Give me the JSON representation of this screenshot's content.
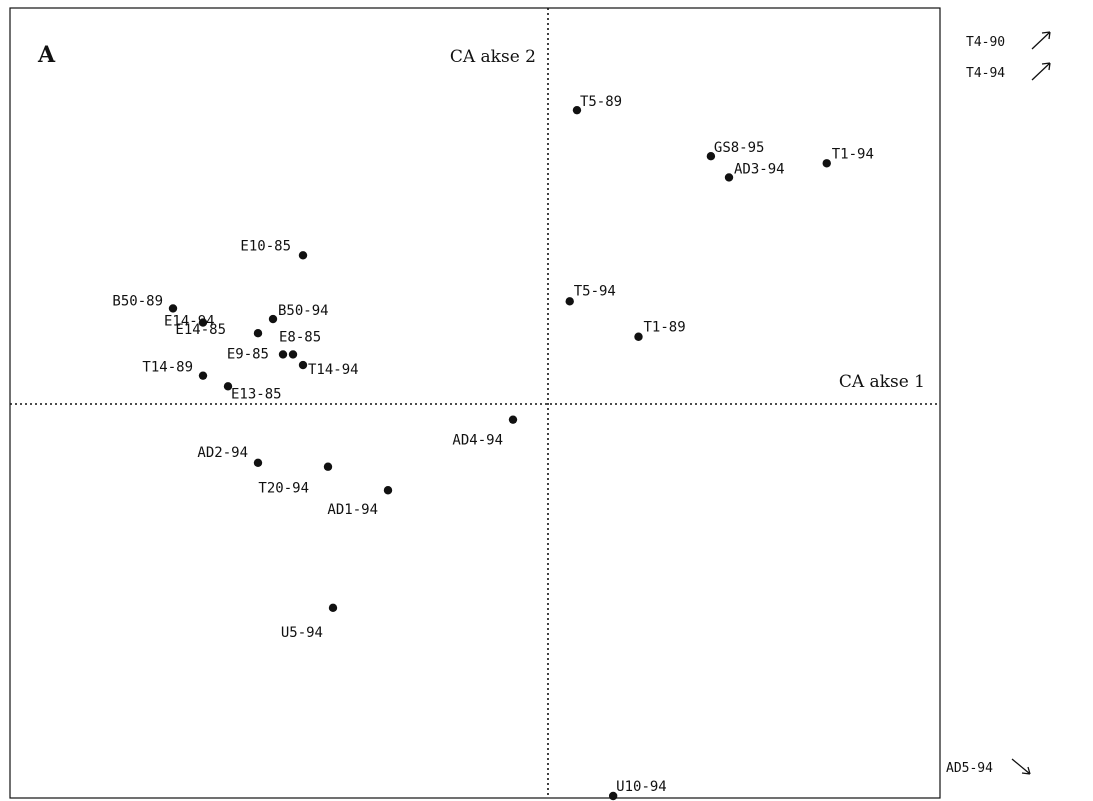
{
  "chart_data": {
    "type": "scatter",
    "panel_label": "A",
    "xlabel": "CA akse 1",
    "ylabel": "CA akse 2",
    "xlim": [
      -1.0,
      1.0
    ],
    "ylim": [
      -1.0,
      1.0
    ],
    "grid": false,
    "points": [
      {
        "label": "T5-89",
        "x": 0.08,
        "y": 0.83
      },
      {
        "label": "GS8-95",
        "x": 0.45,
        "y": 0.7
      },
      {
        "label": "T1-94",
        "x": 0.77,
        "y": 0.68
      },
      {
        "label": "AD3-94",
        "x": 0.5,
        "y": 0.64
      },
      {
        "label": "E10-85",
        "x": -0.49,
        "y": 0.42
      },
      {
        "label": "T5-94",
        "x": 0.06,
        "y": 0.29
      },
      {
        "label": "T1-89",
        "x": 0.25,
        "y": 0.19
      },
      {
        "label": "B50-89",
        "x": -0.75,
        "y": 0.27
      },
      {
        "label": "E14-94",
        "x": -0.69,
        "y": 0.23
      },
      {
        "label": "B50-94",
        "x": -0.55,
        "y": 0.24
      },
      {
        "label": "E14-85",
        "x": -0.58,
        "y": 0.2
      },
      {
        "label": "E8-85",
        "x": -0.53,
        "y": 0.14
      },
      {
        "label": "E9-85",
        "x": -0.51,
        "y": 0.14
      },
      {
        "label": "T14-94",
        "x": -0.49,
        "y": 0.11
      },
      {
        "label": "T14-89",
        "x": -0.69,
        "y": 0.08
      },
      {
        "label": "E13-85",
        "x": -0.64,
        "y": 0.05
      },
      {
        "label": "AD4-94",
        "x": -0.07,
        "y": -0.04
      },
      {
        "label": "AD2-94",
        "x": -0.58,
        "y": -0.15
      },
      {
        "label": "T20-94",
        "x": -0.44,
        "y": -0.16
      },
      {
        "label": "AD1-94",
        "x": -0.32,
        "y": -0.22
      },
      {
        "label": "U5-94",
        "x": -0.43,
        "y": -0.52
      },
      {
        "label": "U10-94",
        "x": 0.18,
        "y": -1.0
      }
    ],
    "off_chart": [
      {
        "label": "T4-90",
        "direction": "up-right"
      },
      {
        "label": "T4-94",
        "direction": "up-right"
      },
      {
        "label": "AD5-94",
        "direction": "down-right"
      }
    ]
  }
}
